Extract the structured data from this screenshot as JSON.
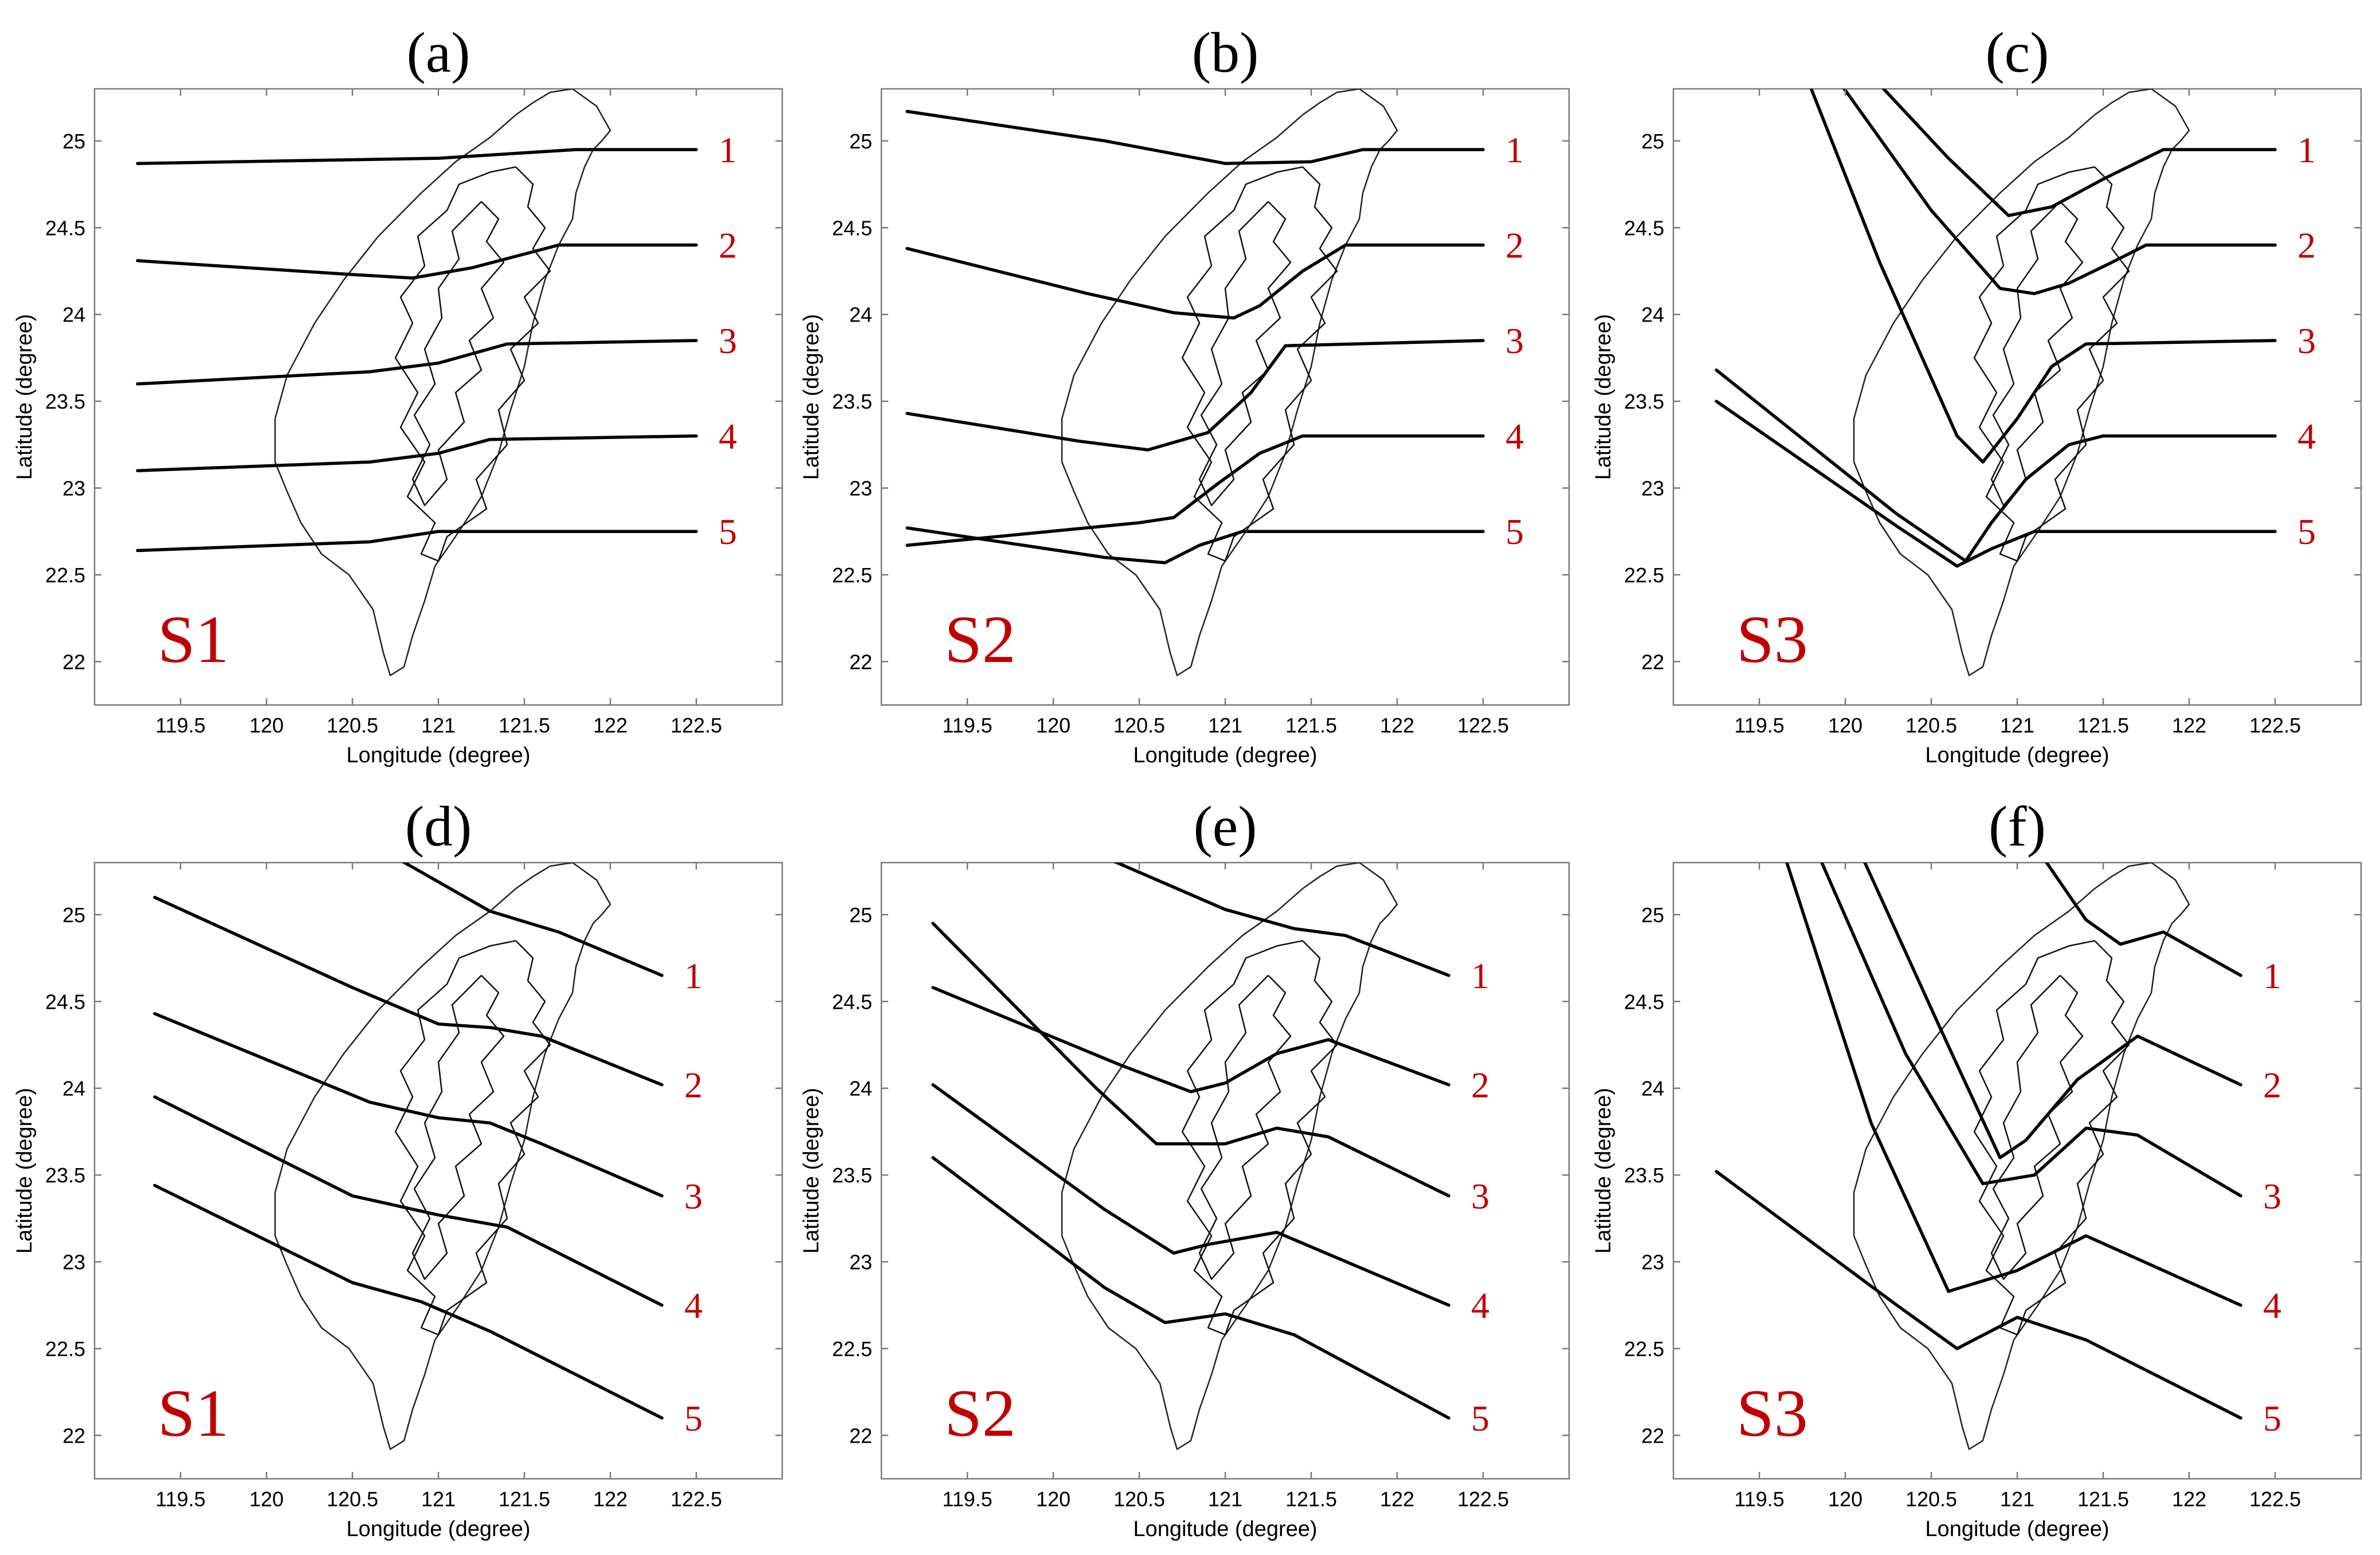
{
  "figure": {
    "x_axis_label": "Longitude (degree)",
    "y_axis_label": "Latitude (degree)",
    "x_ticks": [
      "119.5",
      "120",
      "120.5",
      "121",
      "121.5",
      "122",
      "122.5"
    ],
    "y_ticks": [
      "22",
      "22.5",
      "23",
      "23.5",
      "24",
      "24.5",
      "25"
    ],
    "x_range_deg": [
      119.0,
      123.0
    ],
    "y_range_deg": [
      21.75,
      25.3
    ],
    "colors": {
      "scenario_label": "#c00000",
      "line_number": "#c00000",
      "profile": "#000000",
      "coastline": "#222222"
    }
  },
  "chart_data": [
    {
      "type": "map",
      "panel": "(a)",
      "scenario": "S1",
      "xlabel": "Longitude (degree)",
      "ylabel": "Latitude (degree)",
      "xlim": [
        119.0,
        123.0
      ],
      "ylim": [
        21.75,
        25.3
      ],
      "profiles": [
        {
          "label": "1",
          "points": [
            [
              119.25,
              24.87
            ],
            [
              121.0,
              24.9
            ],
            [
              121.8,
              24.95
            ],
            [
              122.5,
              24.95
            ]
          ]
        },
        {
          "label": "2",
          "points": [
            [
              119.25,
              24.31
            ],
            [
              120.5,
              24.23
            ],
            [
              120.85,
              24.21
            ],
            [
              121.2,
              24.27
            ],
            [
              121.7,
              24.4
            ],
            [
              122.5,
              24.4
            ]
          ]
        },
        {
          "label": "3",
          "points": [
            [
              119.25,
              23.6
            ],
            [
              120.6,
              23.67
            ],
            [
              121.0,
              23.72
            ],
            [
              121.4,
              23.83
            ],
            [
              122.5,
              23.85
            ]
          ]
        },
        {
          "label": "4",
          "points": [
            [
              119.25,
              23.1
            ],
            [
              120.6,
              23.15
            ],
            [
              121.0,
              23.2
            ],
            [
              121.3,
              23.28
            ],
            [
              122.5,
              23.3
            ]
          ]
        },
        {
          "label": "5",
          "points": [
            [
              119.25,
              22.64
            ],
            [
              120.6,
              22.69
            ],
            [
              121.0,
              22.75
            ],
            [
              122.5,
              22.75
            ]
          ]
        }
      ]
    },
    {
      "type": "map",
      "panel": "(b)",
      "scenario": "S2",
      "xlabel": "Longitude (degree)",
      "ylabel": "Latitude (degree)",
      "xlim": [
        119.0,
        123.0
      ],
      "ylim": [
        21.75,
        25.3
      ],
      "profiles": [
        {
          "label": "1",
          "points": [
            [
              119.15,
              25.17
            ],
            [
              120.3,
              25.0
            ],
            [
              121.0,
              24.87
            ],
            [
              121.5,
              24.88
            ],
            [
              121.8,
              24.95
            ],
            [
              122.5,
              24.95
            ]
          ]
        },
        {
          "label": "2",
          "points": [
            [
              119.15,
              24.38
            ],
            [
              120.2,
              24.12
            ],
            [
              120.7,
              24.01
            ],
            [
              121.05,
              23.98
            ],
            [
              121.2,
              24.05
            ],
            [
              121.45,
              24.25
            ],
            [
              121.7,
              24.4
            ],
            [
              122.5,
              24.4
            ]
          ]
        },
        {
          "label": "3",
          "points": [
            [
              119.15,
              23.43
            ],
            [
              120.15,
              23.27
            ],
            [
              120.55,
              23.22
            ],
            [
              120.9,
              23.32
            ],
            [
              121.15,
              23.55
            ],
            [
              121.35,
              23.82
            ],
            [
              122.5,
              23.85
            ]
          ]
        },
        {
          "label": "4",
          "points": [
            [
              119.15,
              22.67
            ],
            [
              120.5,
              22.8
            ],
            [
              120.7,
              22.83
            ],
            [
              120.95,
              23.02
            ],
            [
              121.2,
              23.2
            ],
            [
              121.45,
              23.3
            ],
            [
              122.5,
              23.3
            ]
          ]
        },
        {
          "label": "5",
          "points": [
            [
              119.15,
              22.77
            ],
            [
              120.3,
              22.6
            ],
            [
              120.65,
              22.57
            ],
            [
              120.85,
              22.67
            ],
            [
              121.1,
              22.75
            ],
            [
              122.5,
              22.75
            ]
          ]
        }
      ]
    },
    {
      "type": "map",
      "panel": "(c)",
      "scenario": "S3",
      "xlabel": "Longitude (degree)",
      "ylabel": "Latitude (degree)",
      "xlim": [
        119.0,
        123.0
      ],
      "ylim": [
        21.75,
        25.3
      ],
      "profiles": [
        {
          "label": "1",
          "points": [
            [
              120.1,
              25.43
            ],
            [
              120.6,
              24.9
            ],
            [
              120.95,
              24.57
            ],
            [
              121.2,
              24.62
            ],
            [
              121.5,
              24.78
            ],
            [
              121.85,
              24.95
            ],
            [
              122.5,
              24.95
            ]
          ]
        },
        {
          "label": "2",
          "points": [
            [
              119.9,
              25.43
            ],
            [
              120.5,
              24.6
            ],
            [
              120.9,
              24.15
            ],
            [
              121.1,
              24.12
            ],
            [
              121.3,
              24.18
            ],
            [
              121.55,
              24.3
            ],
            [
              121.75,
              24.4
            ],
            [
              122.5,
              24.4
            ]
          ]
        },
        {
          "label": "3",
          "points": [
            [
              119.75,
              25.43
            ],
            [
              120.2,
              24.3
            ],
            [
              120.65,
              23.3
            ],
            [
              120.8,
              23.15
            ],
            [
              121.0,
              23.4
            ],
            [
              121.2,
              23.7
            ],
            [
              121.4,
              23.83
            ],
            [
              122.5,
              23.85
            ]
          ]
        },
        {
          "label": "4",
          "points": [
            [
              119.25,
              23.68
            ],
            [
              120.3,
              22.85
            ],
            [
              120.7,
              22.58
            ],
            [
              120.85,
              22.8
            ],
            [
              121.05,
              23.05
            ],
            [
              121.3,
              23.25
            ],
            [
              121.5,
              23.3
            ],
            [
              122.5,
              23.3
            ]
          ]
        },
        {
          "label": "5",
          "points": [
            [
              119.25,
              23.5
            ],
            [
              120.3,
              22.78
            ],
            [
              120.65,
              22.55
            ],
            [
              120.85,
              22.65
            ],
            [
              121.1,
              22.75
            ],
            [
              122.5,
              22.75
            ]
          ]
        }
      ]
    },
    {
      "type": "map",
      "panel": "(d)",
      "scenario": "S1",
      "xlabel": "Longitude (degree)",
      "ylabel": "Latitude (degree)",
      "xlim": [
        119.0,
        123.0
      ],
      "ylim": [
        21.75,
        25.3
      ],
      "profiles": [
        {
          "label": "1",
          "points": [
            [
              120.75,
              25.33
            ],
            [
              121.3,
              25.02
            ],
            [
              121.7,
              24.9
            ],
            [
              122.3,
              24.65
            ]
          ]
        },
        {
          "label": "2",
          "points": [
            [
              119.35,
              25.1
            ],
            [
              120.5,
              24.58
            ],
            [
              121.0,
              24.37
            ],
            [
              121.3,
              24.35
            ],
            [
              121.6,
              24.3
            ],
            [
              122.3,
              24.02
            ]
          ]
        },
        {
          "label": "3",
          "points": [
            [
              119.35,
              24.43
            ],
            [
              120.6,
              23.92
            ],
            [
              121.0,
              23.83
            ],
            [
              121.3,
              23.8
            ],
            [
              121.6,
              23.68
            ],
            [
              122.3,
              23.38
            ]
          ]
        },
        {
          "label": "4",
          "points": [
            [
              119.35,
              23.95
            ],
            [
              120.5,
              23.38
            ],
            [
              121.0,
              23.27
            ],
            [
              121.4,
              23.2
            ],
            [
              122.3,
              22.75
            ]
          ]
        },
        {
          "label": "5",
          "points": [
            [
              119.35,
              23.44
            ],
            [
              120.5,
              22.88
            ],
            [
              120.9,
              22.77
            ],
            [
              121.3,
              22.6
            ],
            [
              122.3,
              22.1
            ]
          ]
        }
      ]
    },
    {
      "type": "map",
      "panel": "(e)",
      "scenario": "S2",
      "xlabel": "Longitude (degree)",
      "ylabel": "Latitude (degree)",
      "xlim": [
        119.0,
        123.0
      ],
      "ylim": [
        21.75,
        25.3
      ],
      "profiles": [
        {
          "label": "1",
          "points": [
            [
              120.3,
              25.33
            ],
            [
              121.0,
              25.03
            ],
            [
              121.4,
              24.92
            ],
            [
              121.7,
              24.88
            ],
            [
              122.3,
              24.65
            ]
          ]
        },
        {
          "label": "2",
          "points": [
            [
              119.3,
              24.58
            ],
            [
              120.4,
              24.13
            ],
            [
              120.8,
              23.98
            ],
            [
              121.0,
              24.03
            ],
            [
              121.3,
              24.2
            ],
            [
              121.6,
              24.28
            ],
            [
              122.3,
              24.02
            ]
          ]
        },
        {
          "label": "3",
          "points": [
            [
              119.3,
              24.95
            ],
            [
              120.25,
              24.0
            ],
            [
              120.6,
              23.68
            ],
            [
              121.0,
              23.68
            ],
            [
              121.3,
              23.77
            ],
            [
              121.6,
              23.72
            ],
            [
              122.3,
              23.38
            ]
          ]
        },
        {
          "label": "4",
          "points": [
            [
              119.3,
              24.02
            ],
            [
              120.3,
              23.3
            ],
            [
              120.7,
              23.05
            ],
            [
              120.9,
              23.1
            ],
            [
              121.3,
              23.17
            ],
            [
              122.3,
              22.75
            ]
          ]
        },
        {
          "label": "5",
          "points": [
            [
              119.3,
              23.6
            ],
            [
              120.3,
              22.85
            ],
            [
              120.65,
              22.65
            ],
            [
              121.0,
              22.7
            ],
            [
              121.4,
              22.58
            ],
            [
              122.3,
              22.1
            ]
          ]
        }
      ]
    },
    {
      "type": "map",
      "panel": "(f)",
      "scenario": "S3",
      "xlabel": "Longitude (degree)",
      "ylabel": "Latitude (degree)",
      "xlim": [
        119.0,
        123.0
      ],
      "ylim": [
        21.75,
        25.3
      ],
      "profiles": [
        {
          "label": "1",
          "points": [
            [
              121.15,
              25.33
            ],
            [
              121.4,
              24.97
            ],
            [
              121.6,
              24.83
            ],
            [
              121.85,
              24.9
            ],
            [
              122.3,
              24.65
            ]
          ]
        },
        {
          "label": "2",
          "points": [
            [
              120.1,
              25.33
            ],
            [
              120.55,
              24.35
            ],
            [
              120.9,
              23.6
            ],
            [
              121.05,
              23.7
            ],
            [
              121.35,
              24.05
            ],
            [
              121.7,
              24.3
            ],
            [
              122.3,
              24.02
            ]
          ]
        },
        {
          "label": "3",
          "points": [
            [
              119.85,
              25.33
            ],
            [
              120.35,
              24.2
            ],
            [
              120.8,
              23.45
            ],
            [
              121.1,
              23.5
            ],
            [
              121.4,
              23.77
            ],
            [
              121.7,
              23.73
            ],
            [
              122.3,
              23.38
            ]
          ]
        },
        {
          "label": "4",
          "points": [
            [
              119.65,
              25.33
            ],
            [
              120.15,
              23.8
            ],
            [
              120.6,
              22.83
            ],
            [
              121.0,
              22.95
            ],
            [
              121.4,
              23.15
            ],
            [
              122.3,
              22.75
            ]
          ]
        },
        {
          "label": "5",
          "points": [
            [
              119.25,
              23.52
            ],
            [
              120.3,
              22.75
            ],
            [
              120.65,
              22.5
            ],
            [
              121.0,
              22.68
            ],
            [
              121.4,
              22.55
            ],
            [
              122.3,
              22.1
            ]
          ]
        }
      ]
    }
  ]
}
